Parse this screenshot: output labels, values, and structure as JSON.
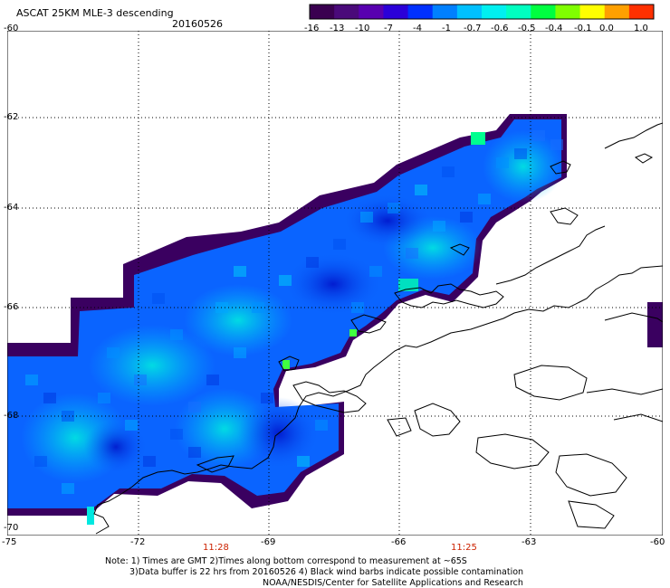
{
  "title": "ASCAT 25KM MLE-3 descending",
  "date": "20160526",
  "colorbar": {
    "labels": [
      "-16",
      "-13",
      "-10",
      "-7",
      "-4",
      "-1",
      "-0.7",
      "-0.6",
      "-0.5",
      "-0.4",
      "-0.1",
      "0.0",
      "1.0"
    ],
    "colors": [
      "#3a0050",
      "#4a0a7a",
      "#5800b0",
      "#2b00d8",
      "#0030ff",
      "#0080ff",
      "#00c0ff",
      "#00f0f0",
      "#00ffc0",
      "#00ff40",
      "#80ff00",
      "#ffff00",
      "#ffa000",
      "#ff3000"
    ]
  },
  "axes": {
    "lat_labels": [
      "-60",
      "-62",
      "-64",
      "-66",
      "-68",
      "-70"
    ],
    "lon_labels": [
      "-75",
      "-72",
      "-69",
      "-66",
      "-63",
      "-60"
    ]
  },
  "times": [
    "11:28",
    "11:25"
  ],
  "notes": {
    "line1": "Note: 1) Times are GMT 2)Times along bottom correspond to measurement at ~65S",
    "line2": "3)Data buffer is 22 hrs from 20160526 4) Black wind barbs indicate possible contamination",
    "line3": "NOAA/NESDIS/Center for Satellite Applications and Research"
  },
  "palette": {
    "background": "#ffffff",
    "coast": "#000000",
    "swath_main": "#0a64ff",
    "swath_light": "#00b4ff",
    "swath_dark": "#0020d0",
    "swath_edge": "#3a0060"
  }
}
